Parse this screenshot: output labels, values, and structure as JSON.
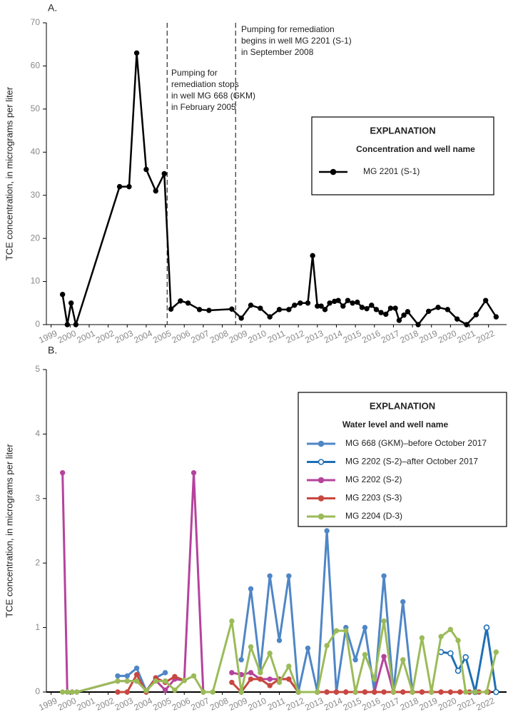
{
  "chart_data": [
    {
      "type": "line",
      "panel": "A.",
      "ylabel": "TCE concentration, in micrograms per liter",
      "legend_title": "EXPLANATION",
      "legend_subtitle": "Concentration and well name",
      "xlim": [
        1998.75,
        2022.95
      ],
      "ylim": [
        0,
        70
      ],
      "xticks": [
        1999,
        2000,
        2001,
        2002,
        2003,
        2004,
        2005,
        2006,
        2007,
        2008,
        2009,
        2010,
        2011,
        2012,
        2013,
        2014,
        2015,
        2016,
        2017,
        2018,
        2019,
        2020,
        2021,
        2022
      ],
      "yticks": [
        0,
        10,
        20,
        30,
        40,
        50,
        60,
        70
      ],
      "annotations": [
        {
          "x": 2005.1,
          "lines": [
            "Pumping for",
            "remediation stops",
            "in well MG 668 (GKM)",
            "in February 2005"
          ]
        },
        {
          "x": 2008.7,
          "lines": [
            "Pumping for remediation",
            "begins in well MG 2201 (S-1)",
            "in September 2008"
          ]
        }
      ],
      "series": [
        {
          "name": "MG 2201 (S-1)",
          "color": "#000000",
          "marker": "filled",
          "x": [
            1999.6,
            1999.85,
            2000.05,
            2000.3,
            2002.6,
            2003.1,
            2003.5,
            2004.0,
            2004.5,
            2004.95,
            2005.3,
            2005.8,
            2006.2,
            2006.8,
            2007.3,
            2008.5,
            2009.0,
            2009.5,
            2010.0,
            2010.5,
            2011.0,
            2011.5,
            2011.8,
            2012.1,
            2012.5,
            2012.75,
            2013.0,
            2013.2,
            2013.4,
            2013.65,
            2013.9,
            2014.1,
            2014.35,
            2014.6,
            2014.85,
            2015.1,
            2015.35,
            2015.6,
            2015.85,
            2016.1,
            2016.35,
            2016.6,
            2016.85,
            2017.1,
            2017.3,
            2017.55,
            2017.75,
            2018.3,
            2018.85,
            2019.35,
            2019.85,
            2020.35,
            2020.85,
            2021.35,
            2021.85,
            2022.4
          ],
          "values": [
            7,
            0,
            5,
            0,
            32,
            32,
            63,
            36,
            31,
            35,
            3.6,
            5.5,
            5,
            3.5,
            3.3,
            3.6,
            1.5,
            4.5,
            3.8,
            1.8,
            3.5,
            3.5,
            4.5,
            5,
            5,
            16,
            4.3,
            4.3,
            3.5,
            5,
            5.4,
            5.6,
            4.3,
            5.6,
            5,
            5.2,
            4,
            3.7,
            4.5,
            3.5,
            2.8,
            2.4,
            3.8,
            3.8,
            1,
            2.2,
            3,
            0,
            3.1,
            4,
            3.5,
            1.3,
            0,
            2.3,
            5.6,
            1.8
          ]
        }
      ]
    },
    {
      "type": "line",
      "panel": "B.",
      "ylabel": "TCE concentration, in micrograms per liter",
      "legend_title": "EXPLANATION",
      "legend_subtitle": "Water level and well name",
      "xlim": [
        1998.75,
        2022.95
      ],
      "ylim": [
        0,
        5
      ],
      "xticks": [
        1999,
        2000,
        2001,
        2002,
        2003,
        2004,
        2005,
        2006,
        2007,
        2008,
        2009,
        2010,
        2011,
        2012,
        2013,
        2014,
        2015,
        2016,
        2017,
        2018,
        2019,
        2020,
        2021,
        2022
      ],
      "yticks": [
        0,
        1,
        2,
        3,
        4,
        5
      ],
      "series": [
        {
          "name": "MG 668 (GKM)–before October 2017",
          "color": "#4f86c6",
          "marker": "filled",
          "x": [
            2002.5,
            2003.0,
            2003.5,
            2004.0,
            2004.5,
            2005.0,
            null,
            2009.0,
            2009.5,
            2010.0,
            2010.5,
            2011.0,
            2011.5,
            2012.0,
            2012.5,
            2013.0,
            2013.5,
            2014.0,
            2014.5,
            2015.0,
            2015.5,
            2016.0,
            2016.5,
            2017.0,
            2017.5,
            2018.0
          ],
          "values": [
            0.25,
            0.25,
            0.37,
            0.02,
            0.22,
            0.3,
            null,
            0.5,
            1.6,
            0.35,
            1.8,
            0.8,
            1.8,
            0,
            0.68,
            0,
            2.5,
            0,
            1.0,
            0.5,
            1.0,
            0,
            1.8,
            0,
            1.4,
            0
          ]
        },
        {
          "name": "MG 2202 (S-2)–after October 2017",
          "color": "#1f6fb5",
          "marker": "open",
          "x": [
            2019.5,
            2020.0,
            2020.4,
            2020.8,
            2021.3,
            2021.9,
            2022.4
          ],
          "values": [
            0.62,
            0.6,
            0.33,
            0.54,
            0,
            1.0,
            0
          ]
        },
        {
          "name": "MG 2202 (S-2)",
          "color": "#b5439d",
          "marker": "filled",
          "x": [
            1999.6,
            1999.85,
            2000.1,
            2000.35,
            2002.5,
            2003.0,
            2003.5,
            2004.0,
            2004.5,
            2005.0,
            2005.5,
            2006.0,
            2006.5,
            2007.0,
            null,
            2008.5,
            2009.0,
            2009.5,
            2010.0,
            2010.5,
            2011.0,
            2011.5,
            2012.0,
            2013.0,
            2013.5,
            2014.0,
            2014.5,
            2015.0,
            2015.5,
            2016.0,
            2016.5,
            2017.0,
            2017.5,
            2018.0,
            2018.5,
            2019.0,
            2019.5
          ],
          "values": [
            3.4,
            0,
            0,
            0,
            0.17,
            0.17,
            0.17,
            0.02,
            0.18,
            0.03,
            0.2,
            0.18,
            3.4,
            0,
            null,
            0.3,
            0.27,
            0.3,
            0.2,
            0.2,
            0.2,
            0.2,
            0,
            0,
            0,
            0,
            0,
            0,
            0,
            0,
            0.55,
            0,
            0,
            0,
            0,
            0,
            0
          ]
        },
        {
          "name": "MG 2203 (S-3)",
          "color": "#c8473f",
          "marker": "filled",
          "x": [
            2002.5,
            2003.0,
            2003.5,
            2004.0,
            2004.5,
            2005.0,
            2005.5,
            2006.0,
            null,
            2008.5,
            2009.0,
            2009.5,
            2010.0,
            2010.5,
            2011.0,
            2011.5,
            2012.0,
            2013.0,
            2013.5,
            2014.0,
            2014.5,
            2015.0,
            2015.5,
            2016.0,
            2016.5,
            2017.0,
            2017.5,
            2018.0,
            2018.5,
            2019.0,
            2019.5,
            2020.0,
            2020.5,
            2021.0,
            2021.5,
            2022.0
          ],
          "values": [
            0,
            0,
            0.27,
            0,
            0.22,
            0.15,
            0.24,
            0.18,
            null,
            0.15,
            0,
            0.2,
            0.2,
            0.1,
            0.2,
            0.2,
            0,
            0,
            0,
            0,
            0,
            0,
            0,
            0,
            0,
            0,
            0,
            0,
            0,
            0,
            0,
            0,
            0,
            0,
            0,
            0
          ]
        },
        {
          "name": "MG 2204 (D-3)",
          "color": "#9bbb59",
          "marker": "filled",
          "x": [
            1999.6,
            1999.85,
            2000.1,
            2000.35,
            2002.5,
            2003.0,
            2003.5,
            2004.0,
            2004.5,
            2005.0,
            2005.5,
            2006.0,
            2006.5,
            2007.0,
            2007.5,
            2008.5,
            2009.0,
            2009.5,
            2010.0,
            2010.5,
            2011.0,
            2011.5,
            2012.0,
            2013.0,
            2013.5,
            2014.0,
            2014.5,
            2015.0,
            2015.5,
            2016.0,
            2016.5,
            2017.0,
            2017.5,
            2018.0,
            2018.5,
            2019.0,
            2019.5,
            2020.0,
            2020.4,
            2020.8,
            2021.3,
            2021.9,
            2022.4
          ],
          "values": [
            0,
            0,
            0,
            0,
            0.17,
            0.17,
            0.17,
            0.02,
            0.17,
            0.17,
            0.03,
            0.18,
            0.25,
            0,
            0,
            1.1,
            0,
            0.7,
            0.3,
            0.6,
            0.15,
            0.4,
            0,
            0,
            0.72,
            0.95,
            0.95,
            0,
            0.58,
            0.2,
            1.1,
            0,
            0.5,
            0,
            0.84,
            0,
            0.86,
            0.97,
            0.8,
            0,
            0,
            0,
            0.62
          ]
        }
      ]
    }
  ]
}
